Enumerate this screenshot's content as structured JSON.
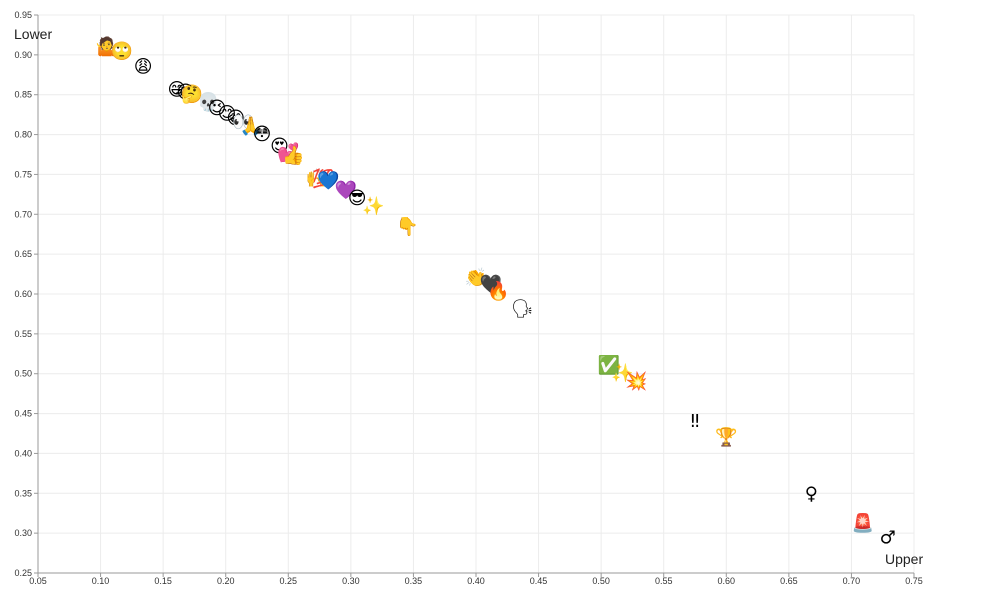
{
  "chart_data": {
    "type": "scatter",
    "xlabel": "Upper",
    "ylabel": "Lower",
    "xlim": [
      0.05,
      0.75
    ],
    "ylim": [
      0.25,
      0.95
    ],
    "xticks": [
      "0.05",
      "0.10",
      "0.15",
      "0.20",
      "0.25",
      "0.30",
      "0.35",
      "0.40",
      "0.45",
      "0.50",
      "0.55",
      "0.60",
      "0.65",
      "0.70",
      "0.75"
    ],
    "yticks": [
      "0.25",
      "0.30",
      "0.35",
      "0.40",
      "0.45",
      "0.50",
      "0.55",
      "0.60",
      "0.65",
      "0.70",
      "0.75",
      "0.80",
      "0.85",
      "0.90",
      "0.95"
    ],
    "grid": true,
    "points": [
      {
        "x": 0.105,
        "y": 0.91,
        "label": "🤷"
      },
      {
        "x": 0.117,
        "y": 0.904,
        "label": "🙄"
      },
      {
        "x": 0.134,
        "y": 0.885,
        "label": "😩"
      },
      {
        "x": 0.161,
        "y": 0.856,
        "label": "😅"
      },
      {
        "x": 0.168,
        "y": 0.853,
        "label": "😂"
      },
      {
        "x": 0.173,
        "y": 0.85,
        "label": "🤔"
      },
      {
        "x": 0.186,
        "y": 0.84,
        "label": "💀"
      },
      {
        "x": 0.193,
        "y": 0.833,
        "label": "😉"
      },
      {
        "x": 0.201,
        "y": 0.826,
        "label": "😊"
      },
      {
        "x": 0.208,
        "y": 0.82,
        "label": "😁"
      },
      {
        "x": 0.214,
        "y": 0.815,
        "label": "👀"
      },
      {
        "x": 0.22,
        "y": 0.81,
        "label": "🙏"
      },
      {
        "x": 0.229,
        "y": 0.8,
        "label": "😳"
      },
      {
        "x": 0.243,
        "y": 0.785,
        "label": "😍"
      },
      {
        "x": 0.25,
        "y": 0.777,
        "label": "💕"
      },
      {
        "x": 0.254,
        "y": 0.773,
        "label": "👍"
      },
      {
        "x": 0.273,
        "y": 0.745,
        "label": "🙌"
      },
      {
        "x": 0.278,
        "y": 0.744,
        "label": "💯"
      },
      {
        "x": 0.282,
        "y": 0.742,
        "label": "💙"
      },
      {
        "x": 0.296,
        "y": 0.73,
        "label": "💜"
      },
      {
        "x": 0.305,
        "y": 0.72,
        "label": "😎"
      },
      {
        "x": 0.318,
        "y": 0.71,
        "label": "✨"
      },
      {
        "x": 0.345,
        "y": 0.684,
        "label": "👇"
      },
      {
        "x": 0.4,
        "y": 0.62,
        "label": "👏"
      },
      {
        "x": 0.412,
        "y": 0.612,
        "label": "🖤"
      },
      {
        "x": 0.418,
        "y": 0.603,
        "label": "🔥"
      },
      {
        "x": 0.437,
        "y": 0.581,
        "label": "🗣"
      },
      {
        "x": 0.506,
        "y": 0.51,
        "label": "✅"
      },
      {
        "x": 0.517,
        "y": 0.5,
        "label": "✨"
      },
      {
        "x": 0.528,
        "y": 0.49,
        "label": "💥"
      },
      {
        "x": 0.575,
        "y": 0.44,
        "label": "‼"
      },
      {
        "x": 0.6,
        "y": 0.42,
        "label": "🏆"
      },
      {
        "x": 0.668,
        "y": 0.349,
        "label": "♀"
      },
      {
        "x": 0.709,
        "y": 0.312,
        "label": "🚨"
      },
      {
        "x": 0.729,
        "y": 0.294,
        "label": "♂"
      }
    ]
  }
}
